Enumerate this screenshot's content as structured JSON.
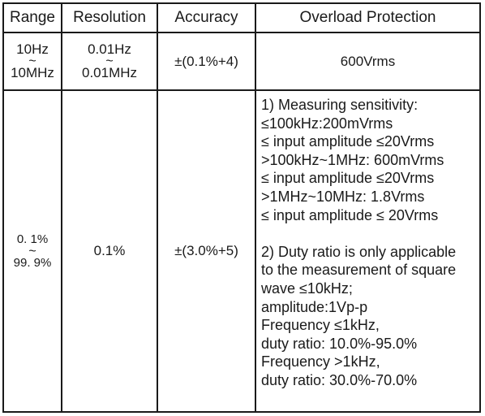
{
  "headers": {
    "range": "Range",
    "resolution": "Resolution",
    "accuracy": "Accuracy",
    "overload": "Overload Protection"
  },
  "rows": [
    {
      "range_top": "10Hz",
      "range_sep": "~",
      "range_bottom": "10MHz",
      "resolution_top": "0.01Hz",
      "resolution_sep": "~",
      "resolution_bottom": "0.01MHz",
      "accuracy": "±(0.1%+4)",
      "overload": "600Vrms"
    },
    {
      "range_top": "0. 1%",
      "range_sep": "~",
      "range_bottom": "99. 9%",
      "resolution": "0.1%",
      "accuracy": "±(3.0%+5)",
      "overload_lines": [
        "1) Measuring sensitivity:",
        "≤100kHz:200mVrms",
        "≤  input amplitude ≤20Vrms",
        ">100kHz~1MHz: 600mVrms",
        "≤  input amplitude ≤20Vrms",
        ">1MHz~10MHz: 1.8Vrms",
        "≤  input amplitude ≤  20Vrms",
        "",
        "2) Duty ratio is only applicable",
        "to the measurement of square",
        "wave ≤10kHz;",
        "amplitude:1Vp-p",
        "Frequency ≤1kHz,",
        "duty ratio: 10.0%-95.0%",
        "Frequency >1kHz,",
        "duty ratio: 30.0%-70.0%"
      ]
    }
  ]
}
